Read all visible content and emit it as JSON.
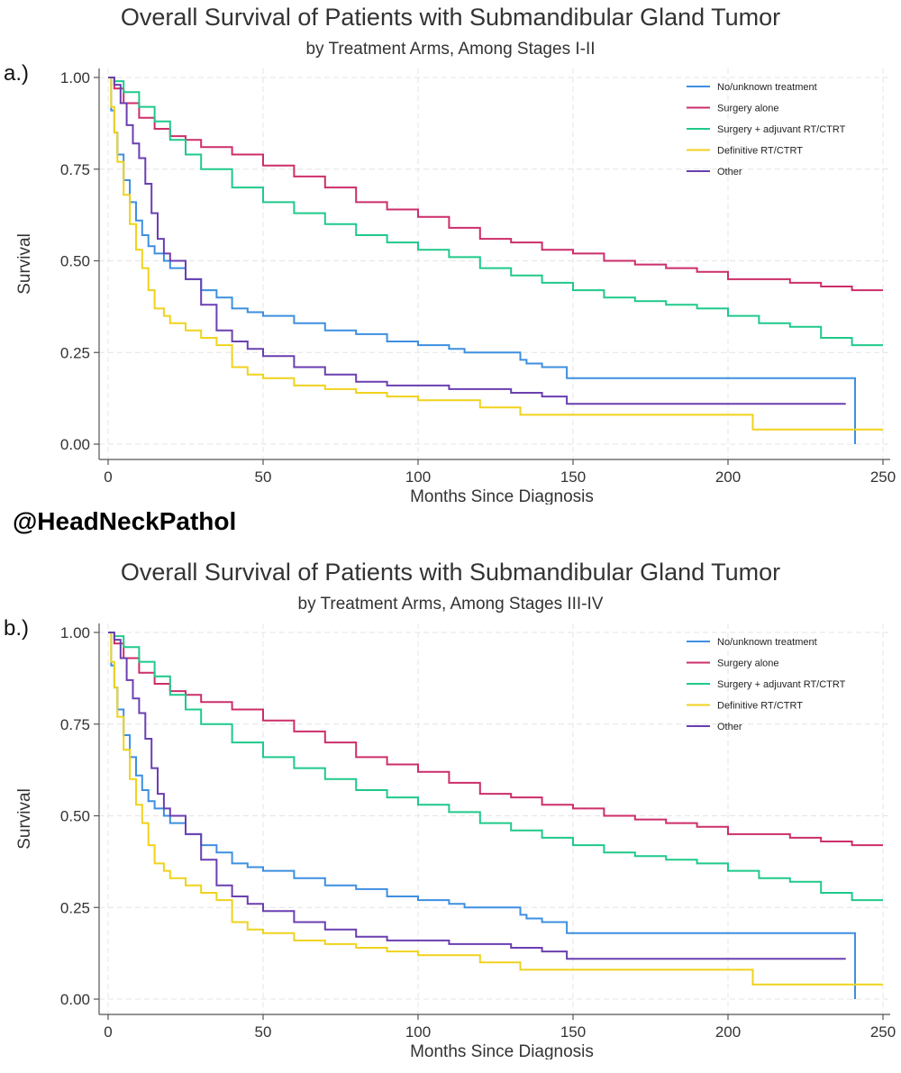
{
  "watermark": "@HeadNeckPathol",
  "chart_data": [
    {
      "type": "line",
      "panel_label": "a.)",
      "title": "Overall Survival of Patients with Submandibular Gland Tumor",
      "subtitle": "by Treatment Arms, Among Stages I-II",
      "xlabel": "Months Since Diagnosis",
      "ylabel": "Survival",
      "xlim": [
        0,
        252
      ],
      "ylim": [
        0,
        1
      ],
      "xticks": [
        0,
        50,
        100,
        150,
        200,
        250
      ],
      "yticks": [
        "0.00",
        "0.25",
        "0.50",
        "0.75",
        "1.00"
      ],
      "legend_position": "top-right",
      "grid": true,
      "series": [
        {
          "name": "No/unknown treatment",
          "color": "#3d8fe0",
          "x": [
            0,
            1,
            2,
            3,
            5,
            7,
            9,
            11,
            13,
            15,
            18,
            20,
            25,
            30,
            35,
            40,
            45,
            50,
            60,
            70,
            80,
            90,
            100,
            110,
            115,
            120,
            125,
            130,
            133,
            135,
            140,
            148,
            155,
            240,
            241,
            241
          ],
          "y": [
            1.0,
            0.91,
            0.85,
            0.79,
            0.72,
            0.66,
            0.61,
            0.57,
            0.54,
            0.52,
            0.5,
            0.48,
            0.45,
            0.42,
            0.4,
            0.37,
            0.36,
            0.35,
            0.33,
            0.31,
            0.3,
            0.28,
            0.27,
            0.26,
            0.25,
            0.25,
            0.25,
            0.25,
            0.23,
            0.22,
            0.21,
            0.18,
            0.18,
            0.18,
            0.18,
            0.0
          ]
        },
        {
          "name": "Surgery alone",
          "color": "#cc2e6a",
          "x": [
            0,
            2,
            5,
            10,
            15,
            20,
            25,
            30,
            40,
            50,
            60,
            70,
            80,
            90,
            100,
            110,
            120,
            130,
            140,
            150,
            160,
            170,
            180,
            190,
            200,
            210,
            220,
            230,
            240,
            250
          ],
          "y": [
            1.0,
            0.97,
            0.93,
            0.89,
            0.86,
            0.84,
            0.83,
            0.81,
            0.79,
            0.76,
            0.73,
            0.7,
            0.66,
            0.64,
            0.62,
            0.59,
            0.56,
            0.55,
            0.53,
            0.52,
            0.5,
            0.49,
            0.48,
            0.47,
            0.45,
            0.45,
            0.44,
            0.43,
            0.42,
            0.42
          ]
        },
        {
          "name": "Surgery + adjuvant RT/CTRT",
          "color": "#1fc98a",
          "x": [
            0,
            2,
            5,
            10,
            15,
            20,
            25,
            30,
            40,
            50,
            60,
            70,
            80,
            90,
            100,
            110,
            120,
            130,
            140,
            150,
            160,
            170,
            180,
            190,
            200,
            210,
            220,
            230,
            240,
            250
          ],
          "y": [
            1.0,
            0.99,
            0.96,
            0.92,
            0.88,
            0.83,
            0.79,
            0.75,
            0.7,
            0.66,
            0.63,
            0.6,
            0.57,
            0.55,
            0.53,
            0.51,
            0.48,
            0.46,
            0.44,
            0.42,
            0.4,
            0.39,
            0.38,
            0.37,
            0.35,
            0.33,
            0.32,
            0.29,
            0.27,
            0.27
          ]
        },
        {
          "name": "Definitive RT/CTRT",
          "color": "#f0d21c",
          "x": [
            0,
            1,
            2,
            3,
            5,
            7,
            9,
            11,
            13,
            15,
            18,
            20,
            25,
            30,
            35,
            40,
            45,
            50,
            60,
            70,
            80,
            90,
            100,
            120,
            133,
            150,
            200,
            207,
            208,
            250
          ],
          "y": [
            1.0,
            0.92,
            0.85,
            0.77,
            0.68,
            0.6,
            0.53,
            0.48,
            0.42,
            0.37,
            0.35,
            0.33,
            0.31,
            0.29,
            0.27,
            0.21,
            0.19,
            0.18,
            0.16,
            0.15,
            0.14,
            0.13,
            0.12,
            0.1,
            0.08,
            0.08,
            0.08,
            0.08,
            0.04,
            0.04
          ]
        },
        {
          "name": "Other",
          "color": "#6a3fb0",
          "x": [
            0,
            2,
            4,
            6,
            8,
            10,
            12,
            14,
            16,
            18,
            20,
            25,
            30,
            35,
            40,
            45,
            50,
            60,
            70,
            80,
            90,
            100,
            110,
            120,
            130,
            140,
            148,
            160,
            200,
            238
          ],
          "y": [
            1.0,
            0.98,
            0.93,
            0.87,
            0.82,
            0.78,
            0.71,
            0.63,
            0.56,
            0.52,
            0.5,
            0.45,
            0.38,
            0.31,
            0.28,
            0.26,
            0.24,
            0.21,
            0.19,
            0.17,
            0.16,
            0.16,
            0.15,
            0.15,
            0.14,
            0.13,
            0.11,
            0.11,
            0.11,
            0.11
          ]
        }
      ]
    },
    {
      "type": "line",
      "panel_label": "b.)",
      "title": "Overall Survival of Patients with Submandibular Gland Tumor",
      "subtitle": "by Treatment Arms, Among Stages III-IV",
      "xlabel": "Months Since Diagnosis",
      "ylabel": "Survival",
      "xlim": [
        0,
        252
      ],
      "ylim": [
        0,
        1
      ],
      "xticks": [
        0,
        50,
        100,
        150,
        200,
        250
      ],
      "yticks": [
        "0.00",
        "0.25",
        "0.50",
        "0.75",
        "1.00"
      ],
      "legend_position": "top-right",
      "grid": true,
      "series": [
        {
          "name": "No/unknown treatment",
          "color": "#3d8fe0",
          "x": [
            0,
            1,
            2,
            3,
            5,
            7,
            9,
            11,
            13,
            15,
            18,
            20,
            25,
            30,
            35,
            40,
            45,
            50,
            60,
            70,
            80,
            90,
            100,
            110,
            115,
            120,
            125,
            130,
            133,
            135,
            140,
            148,
            155,
            240,
            241,
            241
          ],
          "y": [
            1.0,
            0.91,
            0.85,
            0.79,
            0.72,
            0.66,
            0.61,
            0.57,
            0.54,
            0.52,
            0.5,
            0.48,
            0.45,
            0.42,
            0.4,
            0.37,
            0.36,
            0.35,
            0.33,
            0.31,
            0.3,
            0.28,
            0.27,
            0.26,
            0.25,
            0.25,
            0.25,
            0.25,
            0.23,
            0.22,
            0.21,
            0.18,
            0.18,
            0.18,
            0.18,
            0.0
          ]
        },
        {
          "name": "Surgery alone",
          "color": "#cc2e6a",
          "x": [
            0,
            2,
            5,
            10,
            15,
            20,
            25,
            30,
            40,
            50,
            60,
            70,
            80,
            90,
            100,
            110,
            120,
            130,
            140,
            150,
            160,
            170,
            180,
            190,
            200,
            210,
            220,
            230,
            240,
            250
          ],
          "y": [
            1.0,
            0.97,
            0.93,
            0.89,
            0.86,
            0.84,
            0.83,
            0.81,
            0.79,
            0.76,
            0.73,
            0.7,
            0.66,
            0.64,
            0.62,
            0.59,
            0.56,
            0.55,
            0.53,
            0.52,
            0.5,
            0.49,
            0.48,
            0.47,
            0.45,
            0.45,
            0.44,
            0.43,
            0.42,
            0.42
          ]
        },
        {
          "name": "Surgery + adjuvant RT/CTRT",
          "color": "#1fc98a",
          "x": [
            0,
            2,
            5,
            10,
            15,
            20,
            25,
            30,
            40,
            50,
            60,
            70,
            80,
            90,
            100,
            110,
            120,
            130,
            140,
            150,
            160,
            170,
            180,
            190,
            200,
            210,
            220,
            230,
            240,
            250
          ],
          "y": [
            1.0,
            0.99,
            0.96,
            0.92,
            0.88,
            0.83,
            0.79,
            0.75,
            0.7,
            0.66,
            0.63,
            0.6,
            0.57,
            0.55,
            0.53,
            0.51,
            0.48,
            0.46,
            0.44,
            0.42,
            0.4,
            0.39,
            0.38,
            0.37,
            0.35,
            0.33,
            0.32,
            0.29,
            0.27,
            0.27
          ]
        },
        {
          "name": "Definitive RT/CTRT",
          "color": "#f0d21c",
          "x": [
            0,
            1,
            2,
            3,
            5,
            7,
            9,
            11,
            13,
            15,
            18,
            20,
            25,
            30,
            35,
            40,
            45,
            50,
            60,
            70,
            80,
            90,
            100,
            120,
            133,
            150,
            200,
            207,
            208,
            250
          ],
          "y": [
            1.0,
            0.92,
            0.85,
            0.77,
            0.68,
            0.6,
            0.53,
            0.48,
            0.42,
            0.37,
            0.35,
            0.33,
            0.31,
            0.29,
            0.27,
            0.21,
            0.19,
            0.18,
            0.16,
            0.15,
            0.14,
            0.13,
            0.12,
            0.1,
            0.08,
            0.08,
            0.08,
            0.08,
            0.04,
            0.04
          ]
        },
        {
          "name": "Other",
          "color": "#6a3fb0",
          "x": [
            0,
            2,
            4,
            6,
            8,
            10,
            12,
            14,
            16,
            18,
            20,
            25,
            30,
            35,
            40,
            45,
            50,
            60,
            70,
            80,
            90,
            100,
            110,
            120,
            130,
            140,
            148,
            160,
            200,
            238
          ],
          "y": [
            1.0,
            0.98,
            0.93,
            0.87,
            0.82,
            0.78,
            0.71,
            0.63,
            0.56,
            0.52,
            0.5,
            0.45,
            0.38,
            0.31,
            0.28,
            0.26,
            0.24,
            0.21,
            0.19,
            0.17,
            0.16,
            0.16,
            0.15,
            0.15,
            0.14,
            0.13,
            0.11,
            0.11,
            0.11,
            0.11
          ]
        }
      ]
    }
  ]
}
